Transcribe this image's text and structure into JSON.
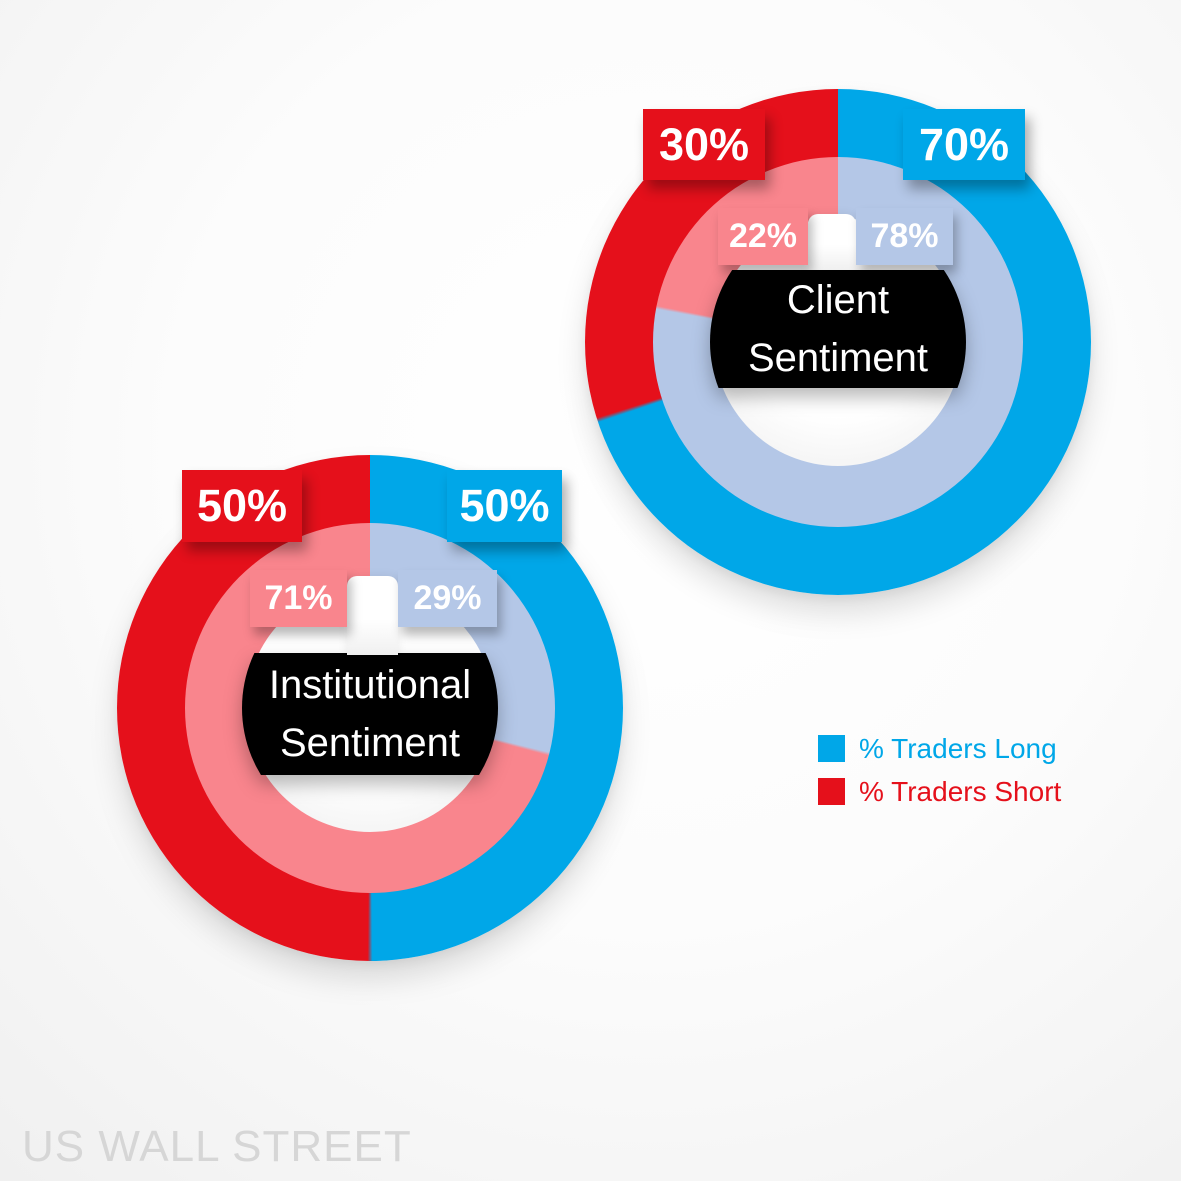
{
  "colors": {
    "long": "#00A7E8",
    "short": "#E5101B",
    "long_light": "#B4C7E7",
    "short_light": "#F9858D",
    "center_bg": "#000000",
    "watermark": "#D6D6D6"
  },
  "charts": [
    {
      "name": "Client Sentiment",
      "title_line1": "Client",
      "title_line2": "Sentiment",
      "outer_long_label": "70%",
      "outer_short_label": "30%",
      "inner_long_label": "78%",
      "inner_short_label": "22%"
    },
    {
      "name": "Institutional Sentiment",
      "title_line1": "Institutional",
      "title_line2": "Sentiment",
      "outer_long_label": "50%",
      "outer_short_label": "50%",
      "inner_long_label": "29%",
      "inner_short_label": "71%"
    }
  ],
  "legend": {
    "items": [
      {
        "label": "% Traders Long",
        "color": "#00A7E8"
      },
      {
        "label": "% Traders Short",
        "color": "#E5101B"
      }
    ]
  },
  "watermark": "US WALL STREET",
  "chart_data": [
    {
      "type": "pie",
      "subtype": "nested-donut",
      "title": "Client Sentiment",
      "direction": "clockwise",
      "start_angle_deg": 0,
      "legend_position": "right",
      "rings": [
        {
          "name": "outer",
          "labels": [
            "% Traders Long",
            "% Traders Short"
          ],
          "values": [
            70,
            30
          ]
        },
        {
          "name": "inner",
          "labels": [
            "% Traders Long",
            "% Traders Short"
          ],
          "values": [
            78,
            22
          ]
        }
      ]
    },
    {
      "type": "pie",
      "subtype": "nested-donut",
      "title": "Institutional Sentiment",
      "direction": "clockwise",
      "start_angle_deg": 0,
      "legend_position": "right",
      "rings": [
        {
          "name": "outer",
          "labels": [
            "% Traders Long",
            "% Traders Short"
          ],
          "values": [
            50,
            50
          ]
        },
        {
          "name": "inner",
          "labels": [
            "% Traders Long",
            "% Traders Short"
          ],
          "values": [
            29,
            71
          ]
        }
      ]
    }
  ]
}
